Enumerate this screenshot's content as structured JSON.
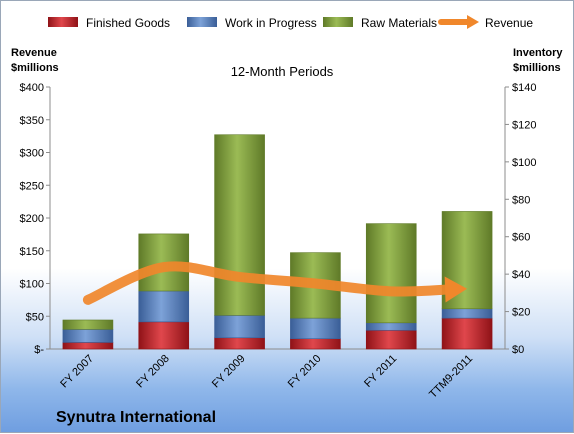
{
  "chart_data": {
    "type": "bar",
    "subtitle": "12-Month Periods",
    "company": "Synutra International",
    "left_axis": {
      "label_line1": "Revenue",
      "label_line2": "$millions",
      "range": [
        0,
        400
      ],
      "ticks": [
        "$-",
        "$50",
        "$100",
        "$150",
        "$200",
        "$250",
        "$300",
        "$350",
        "$400"
      ],
      "tick_values": [
        0,
        50,
        100,
        150,
        200,
        250,
        300,
        350,
        400
      ]
    },
    "right_axis": {
      "label_line1": "Inventory",
      "label_line2": "$millions",
      "range": [
        0,
        140
      ],
      "ticks": [
        "$0",
        "$20",
        "$40",
        "$60",
        "$80",
        "$100",
        "$120",
        "$140"
      ],
      "tick_values": [
        0,
        20,
        40,
        60,
        80,
        100,
        120,
        140
      ]
    },
    "categories": [
      "FY 2007",
      "FY 2008",
      "FY 2009",
      "FY 2010",
      "FY 2011",
      "TTM9-2011"
    ],
    "series": [
      {
        "name": "Finished Goods",
        "axis": "right",
        "color": "#c0262c",
        "values": [
          3.5,
          14.5,
          6,
          5.5,
          10,
          16.5
        ]
      },
      {
        "name": "Work in Progress",
        "axis": "right",
        "color": "#4f7bbf",
        "values": [
          7,
          16.5,
          12,
          11,
          4,
          5
        ]
      },
      {
        "name": "Raw Materials",
        "axis": "right",
        "color": "#7e9d3b",
        "values": [
          5,
          30.5,
          96.5,
          35,
          53,
          52
        ]
      },
      {
        "name": "Revenue",
        "axis": "left",
        "color": "#f0872b",
        "values": [
          75,
          125,
          110,
          100,
          88,
          92
        ]
      }
    ],
    "legend_position": "top",
    "grid": false
  }
}
